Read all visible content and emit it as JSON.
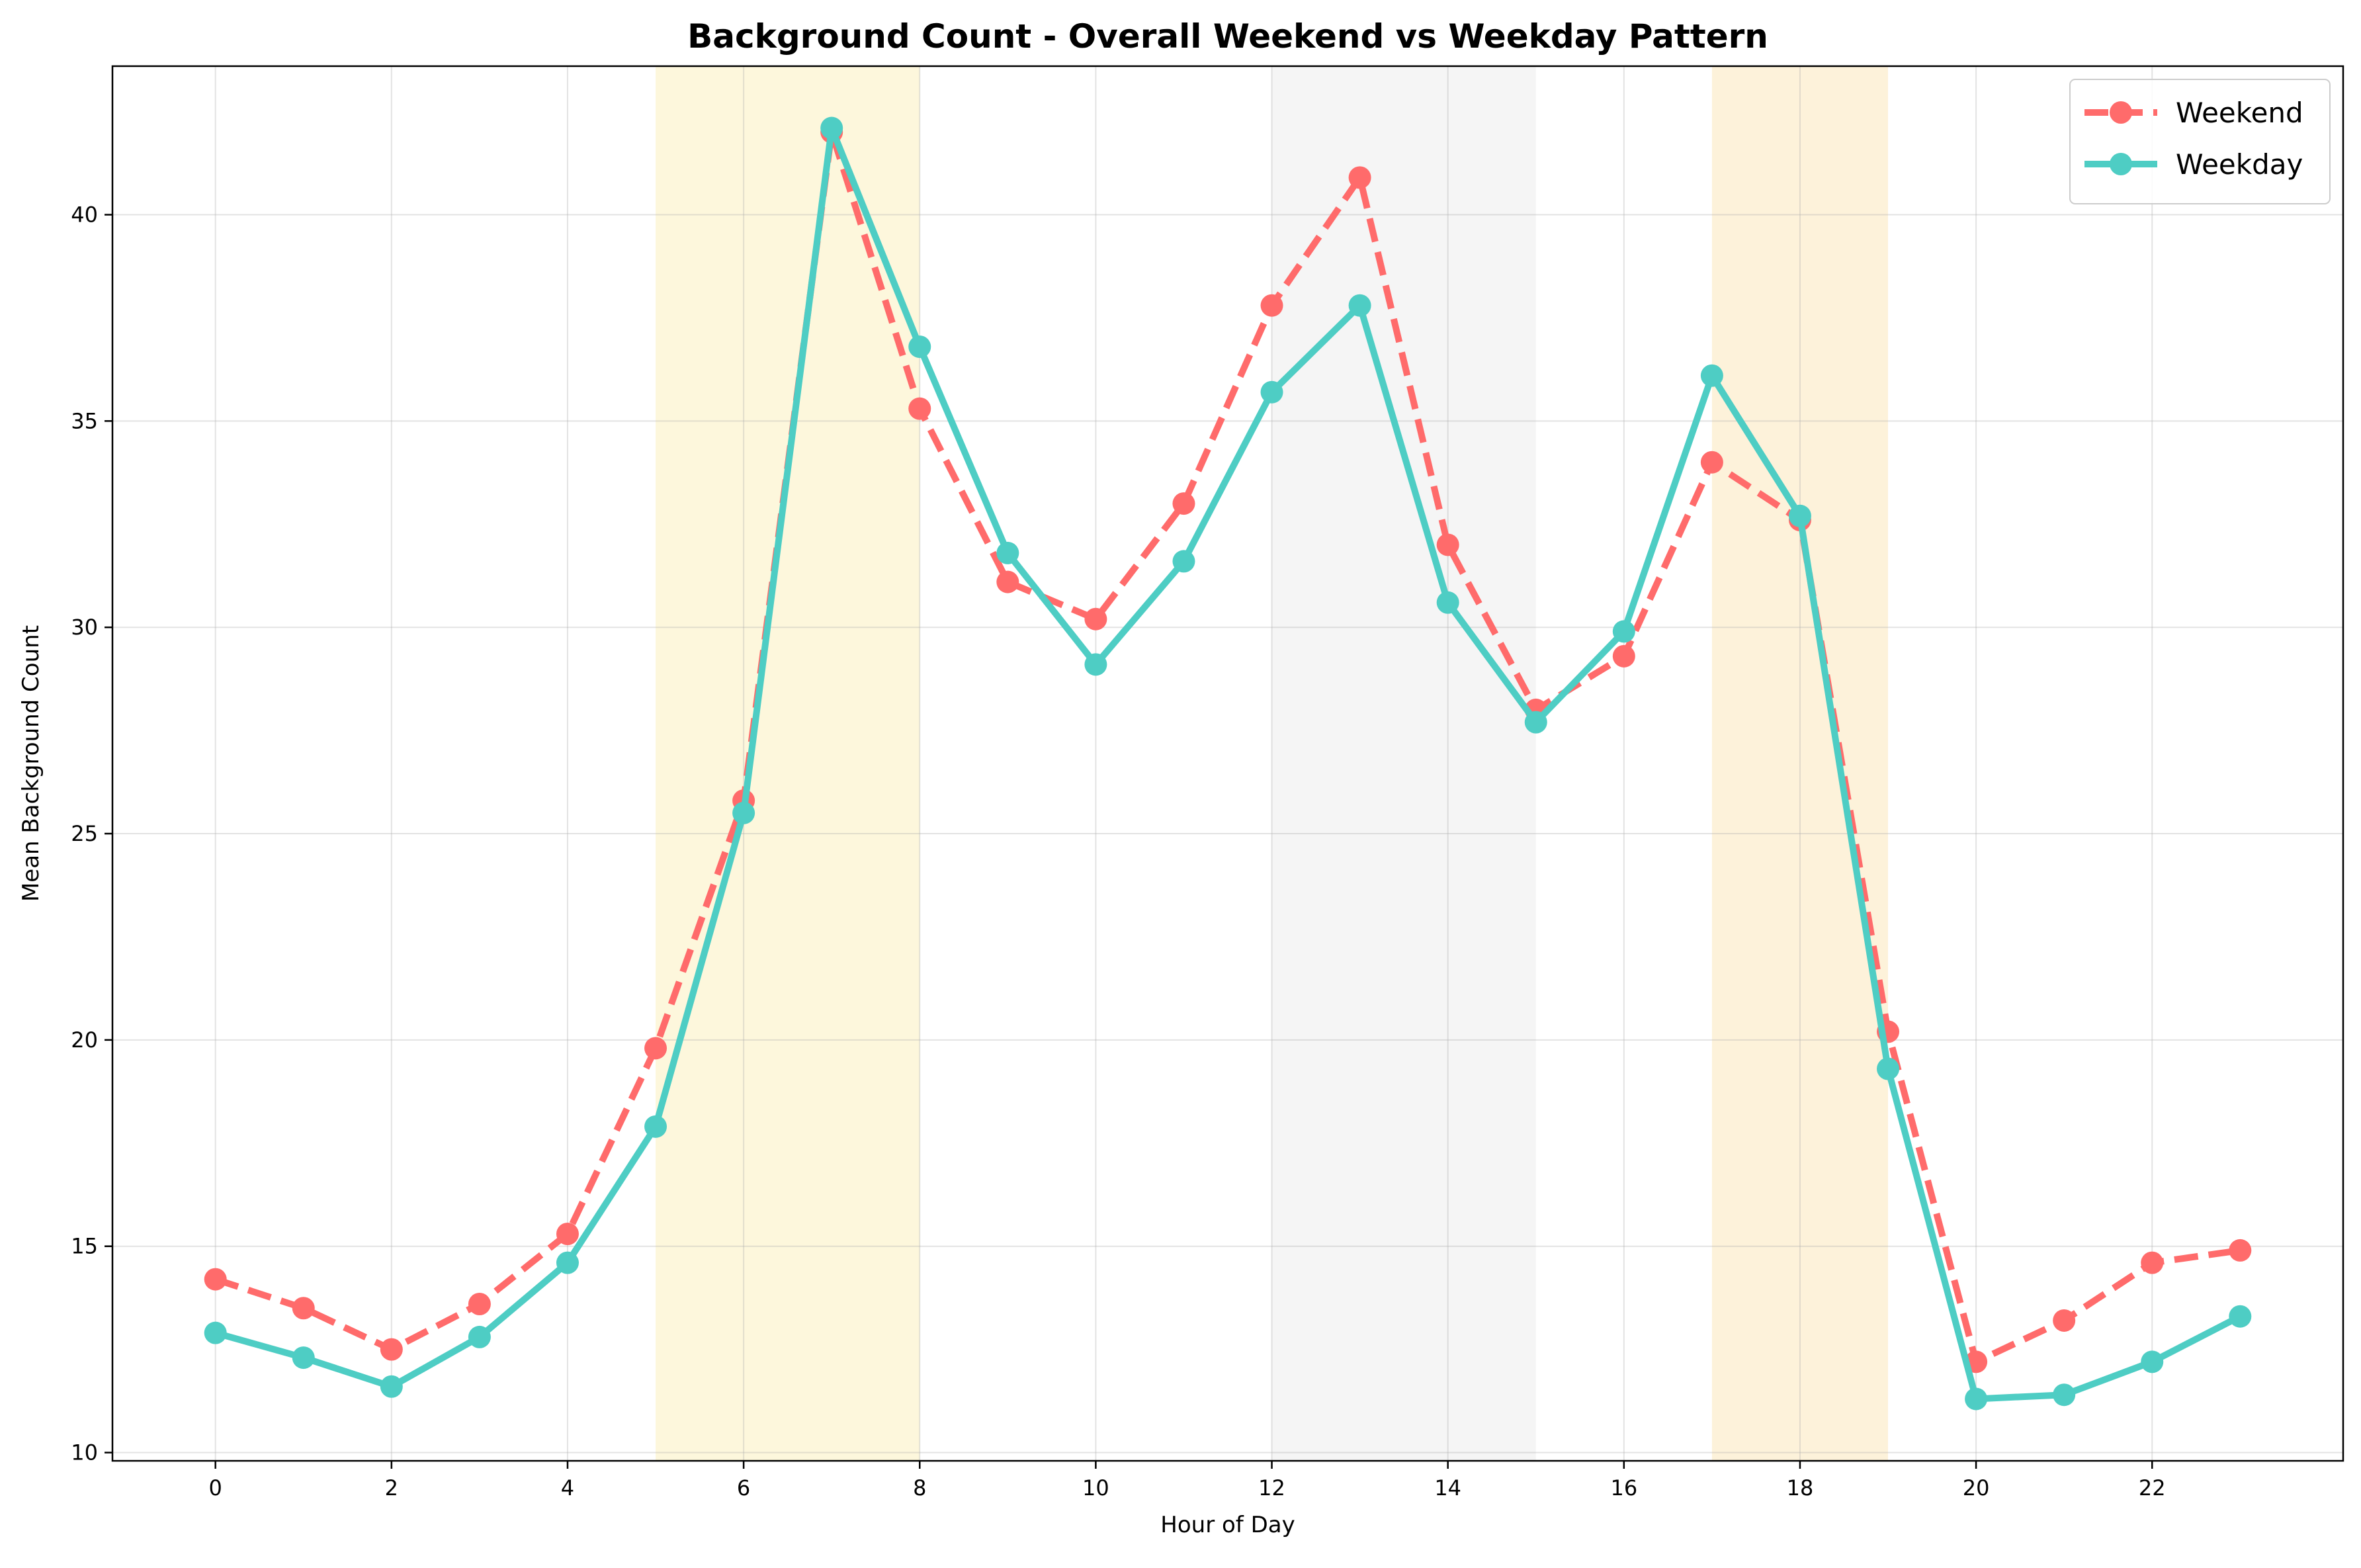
{
  "chart_data": {
    "type": "line",
    "title": "Background Count - Overall Weekend vs Weekday Pattern",
    "xlabel": "Hour of Day",
    "ylabel": "Mean Background Count",
    "x": [
      0,
      1,
      2,
      3,
      4,
      5,
      6,
      7,
      8,
      9,
      10,
      11,
      12,
      13,
      14,
      15,
      16,
      17,
      18,
      19,
      20,
      21,
      22,
      23
    ],
    "xlim": [
      -1.17,
      24.17
    ],
    "ylim": [
      9.8,
      43.6
    ],
    "xticks": [
      0,
      2,
      4,
      6,
      8,
      10,
      12,
      14,
      16,
      18,
      20,
      22
    ],
    "yticks": [
      10,
      15,
      20,
      25,
      30,
      35,
      40
    ],
    "grid": true,
    "legend": "top-right",
    "shaded_bands": [
      {
        "from": 5,
        "to": 8,
        "color": "#fdf7dc"
      },
      {
        "from": 12,
        "to": 15,
        "color": "#f5f5f5"
      },
      {
        "from": 17,
        "to": 19,
        "color": "#fdf2da"
      }
    ],
    "series": [
      {
        "name": "Weekend",
        "color": "#ff6b6b",
        "style": "dashed",
        "values": [
          14.2,
          13.5,
          12.5,
          13.6,
          15.3,
          19.8,
          25.8,
          42.0,
          35.3,
          31.1,
          30.2,
          33.0,
          37.8,
          40.9,
          32.0,
          28.0,
          29.3,
          34.0,
          32.6,
          20.2,
          12.2,
          13.2,
          14.6,
          14.9
        ]
      },
      {
        "name": "Weekday",
        "color": "#4ecdc4",
        "style": "solid",
        "values": [
          12.9,
          12.3,
          11.6,
          12.8,
          14.6,
          17.9,
          25.5,
          42.1,
          36.8,
          31.8,
          29.1,
          31.6,
          35.7,
          37.8,
          30.6,
          27.7,
          29.9,
          36.1,
          32.7,
          19.3,
          11.3,
          11.4,
          12.2,
          13.3
        ]
      }
    ]
  }
}
